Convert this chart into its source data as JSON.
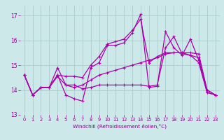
{
  "xlabel": "Windchill (Refroidissement éolien,°C)",
  "xlim": [
    -0.5,
    23.5
  ],
  "ylim": [
    13.0,
    17.4
  ],
  "yticks": [
    13,
    14,
    15,
    16,
    17
  ],
  "xticks": [
    0,
    1,
    2,
    3,
    4,
    5,
    6,
    7,
    8,
    9,
    10,
    11,
    12,
    13,
    14,
    15,
    16,
    17,
    18,
    19,
    20,
    21,
    22,
    23
  ],
  "background_color": "#cce8e8",
  "line_color": "#aa00aa",
  "grid_color": "#aacccc",
  "lines": [
    [
      14.6,
      13.8,
      14.1,
      14.1,
      14.6,
      13.8,
      13.65,
      13.55,
      14.9,
      15.1,
      15.8,
      15.8,
      15.9,
      16.3,
      17.05,
      14.1,
      14.15,
      16.35,
      15.7,
      15.4,
      16.05,
      15.2,
      13.9,
      13.8
    ],
    [
      14.6,
      13.8,
      14.1,
      14.1,
      14.9,
      14.2,
      14.2,
      14.05,
      14.1,
      14.2,
      14.2,
      14.2,
      14.2,
      14.2,
      14.2,
      14.15,
      14.2,
      15.7,
      16.15,
      15.45,
      15.4,
      15.1,
      13.9,
      13.8
    ],
    [
      14.6,
      13.8,
      14.1,
      14.1,
      14.6,
      14.55,
      14.55,
      14.5,
      15.0,
      15.35,
      15.85,
      15.95,
      16.05,
      16.4,
      16.85,
      15.1,
      15.35,
      15.5,
      15.5,
      15.5,
      15.5,
      15.45,
      14.0,
      13.8
    ],
    [
      14.6,
      13.8,
      14.1,
      14.1,
      14.55,
      14.2,
      14.1,
      14.2,
      14.4,
      14.6,
      14.7,
      14.8,
      14.9,
      15.0,
      15.1,
      15.2,
      15.3,
      15.45,
      15.5,
      15.5,
      15.4,
      15.3,
      14.0,
      13.8
    ]
  ]
}
